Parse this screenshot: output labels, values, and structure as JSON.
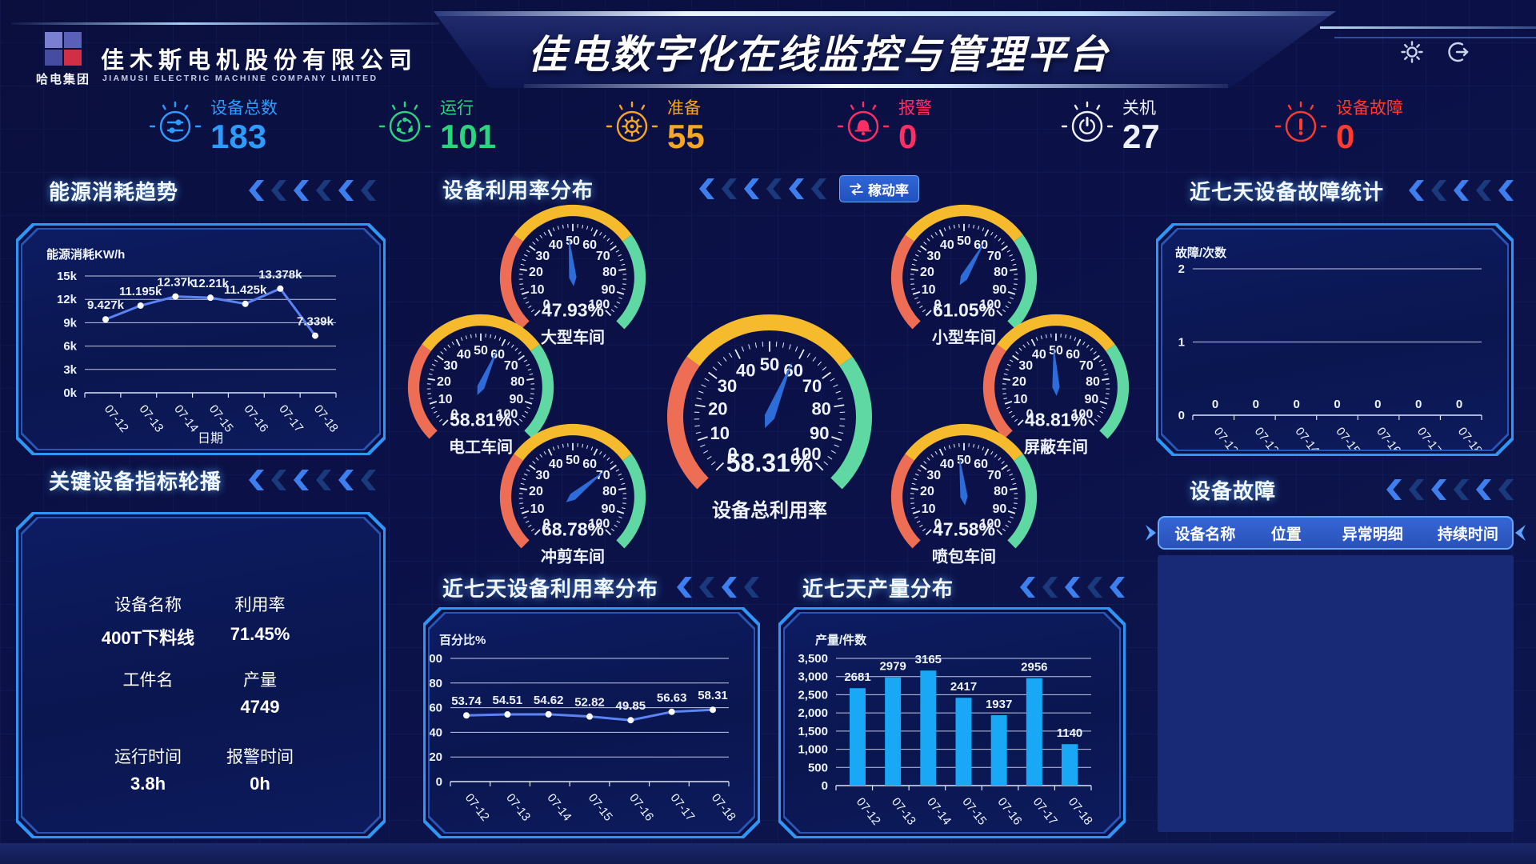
{
  "header": {
    "logo_text": "哈电集团",
    "company_cn": "佳木斯电机股份有限公司",
    "company_en": "JIAMUSI ELECTRIC MACHINE COMPANY LIMITED",
    "title": "佳电数字化在线监控与管理平台"
  },
  "stats": [
    {
      "label": "设备总数",
      "value": "183",
      "color": "#2e9bff"
    },
    {
      "label": "运行",
      "value": "101",
      "color": "#2bd47d"
    },
    {
      "label": "准备",
      "value": "55",
      "color": "#f5a623"
    },
    {
      "label": "报警",
      "value": "0",
      "color": "#ff2e63"
    },
    {
      "label": "关机",
      "value": "27",
      "color": "#eef1fb"
    },
    {
      "label": "设备故障",
      "value": "0",
      "color": "#ff3b30"
    }
  ],
  "sections": {
    "energy": "能源消耗趋势",
    "gauges": "设备利用率分布",
    "key_equipment": "关键设备指标轮播",
    "utilization7": "近七天设备利用率分布",
    "production7": "近七天产量分布",
    "fault_stats": "近七天设备故障统计",
    "fault_table": "设备故障"
  },
  "gauge_toggle_button": {
    "label": "稼动率"
  },
  "key_equipment": {
    "rows": [
      {
        "labels": [
          "设备名称",
          "利用率"
        ],
        "values": [
          "400T下料线",
          "71.45%"
        ]
      },
      {
        "labels": [
          "工件名",
          "产量"
        ],
        "values": [
          "",
          "4749"
        ]
      },
      {
        "labels": [
          "运行时间",
          "报警时间"
        ],
        "values": [
          "3.8h",
          "0h"
        ]
      }
    ]
  },
  "fault_table": {
    "headers": [
      "设备名称",
      "位置",
      "异常明细",
      "持续时间"
    ],
    "rows": []
  },
  "chart_data": [
    {
      "id": "energy",
      "type": "line",
      "title": "能源消耗趋势",
      "ylabel": "能源消耗KW/h",
      "xlabel": "日期",
      "categories": [
        "07-12",
        "07-13",
        "07-14",
        "07-15",
        "07-16",
        "07-17",
        "07-18"
      ],
      "values": [
        9427,
        11195,
        12370,
        12210,
        11425,
        13378,
        7339
      ],
      "point_labels": [
        "9.427k",
        "11.195k",
        "12.37k",
        "12.21k",
        "11.425k",
        "13.378k",
        "7.339k"
      ],
      "ylim": [
        0,
        15000
      ],
      "yticks": [
        {
          "v": 0,
          "label": "0k"
        },
        {
          "v": 3000,
          "label": "3k"
        },
        {
          "v": 6000,
          "label": "6k"
        },
        {
          "v": 9000,
          "label": "9k"
        },
        {
          "v": 12000,
          "label": "12k"
        },
        {
          "v": 15000,
          "label": "15k"
        }
      ],
      "grid": true,
      "line_color": "#5b83f2"
    },
    {
      "id": "utilization7",
      "type": "line",
      "title": "近七天设备利用率分布",
      "ylabel": "百分比%",
      "xlabel": "",
      "categories": [
        "07-12",
        "07-13",
        "07-14",
        "07-15",
        "07-16",
        "07-17",
        "07-18"
      ],
      "values": [
        53.74,
        54.51,
        54.62,
        52.82,
        49.85,
        56.63,
        58.31
      ],
      "point_labels": [
        "53.74",
        "54.51",
        "54.62",
        "52.82",
        "49.85",
        "56.63",
        "58.31"
      ],
      "ylim": [
        0,
        100
      ],
      "yticks": [
        {
          "v": 0,
          "label": "0"
        },
        {
          "v": 20,
          "label": "20"
        },
        {
          "v": 40,
          "label": "40"
        },
        {
          "v": 60,
          "label": "60"
        },
        {
          "v": 80,
          "label": "80"
        },
        {
          "v": 100,
          "label": "100"
        }
      ],
      "grid": true,
      "line_color": "#5b83f2"
    },
    {
      "id": "production7",
      "type": "bar",
      "title": "近七天产量分布",
      "ylabel": "产量/件数",
      "xlabel": "",
      "categories": [
        "07-12",
        "07-13",
        "07-14",
        "07-15",
        "07-16",
        "07-17",
        "07-18"
      ],
      "values": [
        2681,
        2979,
        3165,
        2417,
        1937,
        2956,
        1140
      ],
      "point_labels": [
        "2681",
        "2979",
        "3165",
        "2417",
        "1937",
        "2956",
        "1140"
      ],
      "ylim": [
        0,
        3500
      ],
      "yticks": [
        {
          "v": 0,
          "label": "0"
        },
        {
          "v": 500,
          "label": "500"
        },
        {
          "v": 1000,
          "label": "1,000"
        },
        {
          "v": 1500,
          "label": "1,500"
        },
        {
          "v": 2000,
          "label": "2,000"
        },
        {
          "v": 2500,
          "label": "2,500"
        },
        {
          "v": 3000,
          "label": "3,000"
        },
        {
          "v": 3500,
          "label": "3,500"
        }
      ],
      "grid": true,
      "bar_color": "#18a8f6"
    },
    {
      "id": "fault7",
      "type": "bar",
      "title": "近七天设备故障统计",
      "ylabel": "故障/次数",
      "xlabel": "",
      "categories": [
        "07-12",
        "07-13",
        "07-14",
        "07-15",
        "07-16",
        "07-17",
        "07-18"
      ],
      "values": [
        0,
        0,
        0,
        0,
        0,
        0,
        0
      ],
      "point_labels": [
        "0",
        "0",
        "0",
        "0",
        "0",
        "0",
        "0"
      ],
      "ylim": [
        0,
        2
      ],
      "yticks": [
        {
          "v": 0,
          "label": "0"
        },
        {
          "v": 1,
          "label": "1"
        },
        {
          "v": 2,
          "label": "2"
        }
      ],
      "grid": true,
      "bar_color": "#18a8f6"
    },
    {
      "id": "workshop_gauges",
      "type": "gauge",
      "unit": "%",
      "axis_range": [
        0,
        100
      ],
      "segments": [
        {
          "from": 0,
          "to": 30,
          "color": "#ee6e55"
        },
        {
          "from": 30,
          "to": 70,
          "color": "#f5bb2c"
        },
        {
          "from": 70,
          "to": 100,
          "color": "#5fd8a3"
        }
      ],
      "needle_color": "#2e6cd9",
      "items": [
        {
          "name": "大型车间",
          "value": 47.93
        },
        {
          "name": "小型车间",
          "value": 61.05
        },
        {
          "name": "电工车间",
          "value": 58.81
        },
        {
          "name": "屏蔽车间",
          "value": 48.81
        },
        {
          "name": "冲剪车间",
          "value": 68.78
        },
        {
          "name": "喷包车间",
          "value": 47.58
        },
        {
          "name": "设备总利用率",
          "value": 58.31
        }
      ]
    }
  ]
}
